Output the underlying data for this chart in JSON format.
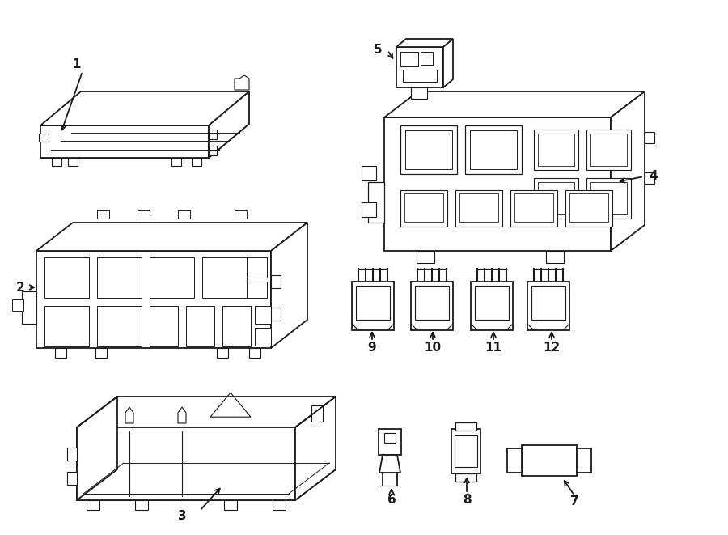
{
  "background_color": "#ffffff",
  "line_color": "#1a1a1a",
  "line_width": 1.3,
  "figsize": [
    9.0,
    6.61
  ],
  "dpi": 100
}
